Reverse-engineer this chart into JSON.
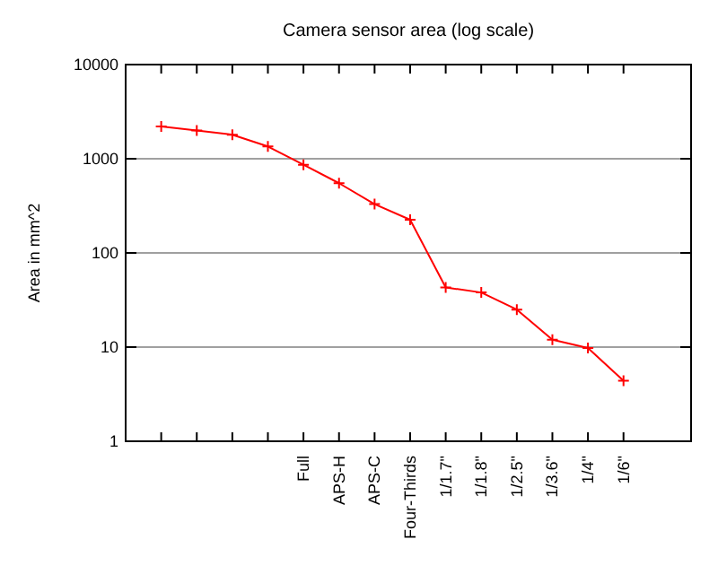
{
  "chart_data": {
    "type": "line",
    "title": "Camera sensor area (log scale)",
    "ylabel": "Area in mm^2",
    "categories": [
      null,
      null,
      null,
      null,
      "Full",
      "APS-H",
      "APS-C",
      "Four-Thirds",
      "1/1.7\"",
      "1/1.8\"",
      "1/2.5\"",
      "1/3.6\"",
      "1/4\"",
      "1/6\""
    ],
    "series": [
      {
        "color": "#ff0000",
        "values": [
          2200,
          2000,
          1800,
          1350,
          864,
          550,
          330,
          225,
          43,
          38,
          25,
          12,
          9.8,
          4.4
        ]
      }
    ],
    "ylim": [
      1,
      10000
    ],
    "yticks": [
      1,
      10,
      100,
      1000,
      10000
    ],
    "log": true,
    "grid": "y",
    "marker": "cross",
    "line_style": "solid"
  }
}
